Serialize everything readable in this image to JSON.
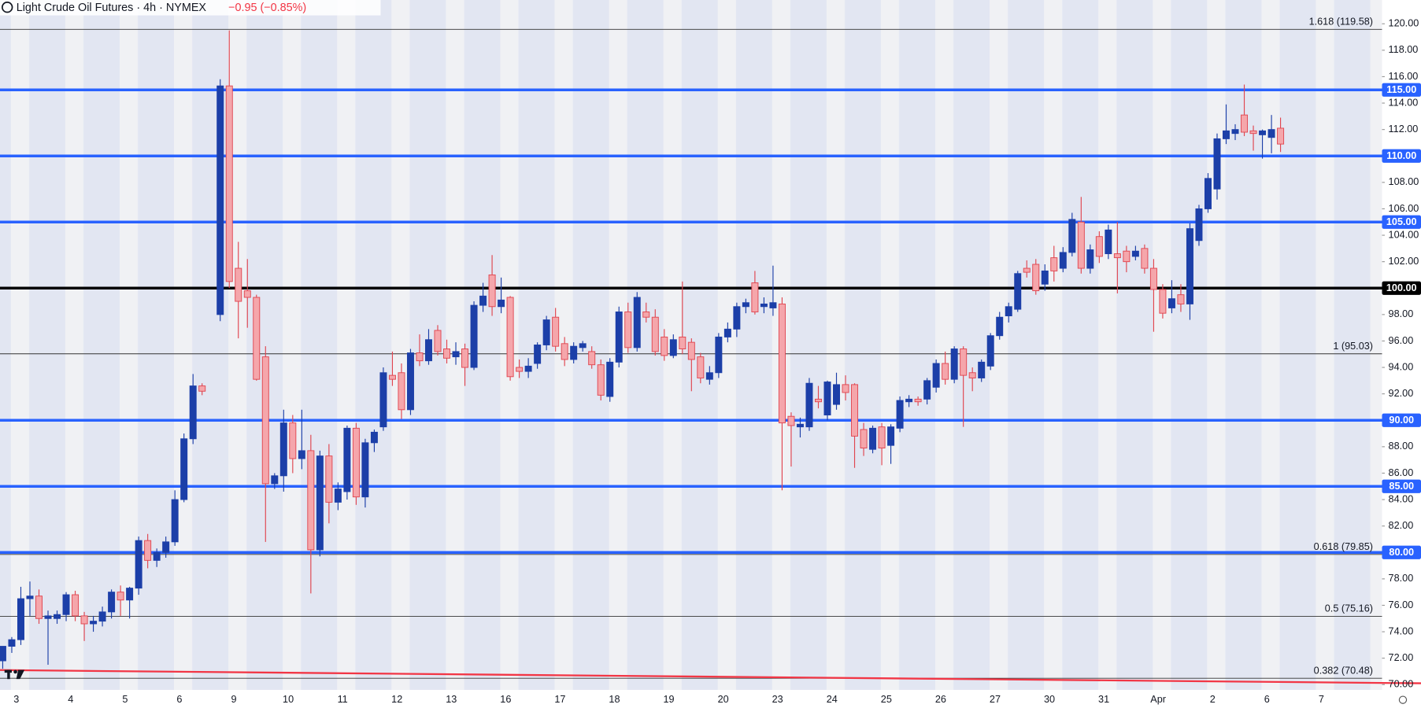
{
  "chart_data": {
    "type": "candlestick",
    "title": "Light Crude Oil Futures · 4h · NYMEX",
    "change": "−0.95 (−0.85%)",
    "categories": [
      "3",
      "4",
      "5",
      "6",
      "9",
      "10",
      "11",
      "12",
      "13",
      "16",
      "17",
      "18",
      "19",
      "20",
      "23",
      "24",
      "25",
      "26",
      "27",
      "30",
      "31",
      "Apr",
      "2",
      "6",
      "7"
    ],
    "ylim": [
      69.6,
      121.8
    ],
    "yticks": [
      {
        "value": 70,
        "label": "70.00"
      },
      {
        "value": 72,
        "label": "72.00"
      },
      {
        "value": 74,
        "label": "74.00"
      },
      {
        "value": 76,
        "label": "76.00"
      },
      {
        "value": 78,
        "label": "78.00"
      },
      {
        "value": 80,
        "label": "80.00"
      },
      {
        "value": 82,
        "label": "82.00"
      },
      {
        "value": 84,
        "label": "84.00"
      },
      {
        "value": 86,
        "label": "86.00"
      },
      {
        "value": 88,
        "label": "88.00"
      },
      {
        "value": 90,
        "label": "90.00"
      },
      {
        "value": 92,
        "label": "92.00"
      },
      {
        "value": 94,
        "label": "94.00"
      },
      {
        "value": 96,
        "label": "96.00"
      },
      {
        "value": 98,
        "label": "98.00"
      },
      {
        "value": 100,
        "label": "100.00"
      },
      {
        "value": 102,
        "label": "102.00"
      },
      {
        "value": 104,
        "label": "104.00"
      },
      {
        "value": 106,
        "label": "106.00"
      },
      {
        "value": 108,
        "label": "108.00"
      },
      {
        "value": 110,
        "label": "110.00"
      },
      {
        "value": 112,
        "label": "112.00"
      },
      {
        "value": 114,
        "label": "114.00"
      },
      {
        "value": 116,
        "label": "116.00"
      },
      {
        "value": 118,
        "label": "118.00"
      },
      {
        "value": 120,
        "label": "120.00"
      }
    ],
    "levels": [
      {
        "value": 115,
        "label": "115.00",
        "color": "#2962ff"
      },
      {
        "value": 110,
        "label": "110.00",
        "color": "#2962ff"
      },
      {
        "value": 105,
        "label": "105.00",
        "color": "#2962ff"
      },
      {
        "value": 100,
        "label": "100.00",
        "color": "#000000"
      },
      {
        "value": 90,
        "label": "90.00",
        "color": "#2962ff"
      },
      {
        "value": 85,
        "label": "85.00",
        "color": "#2962ff"
      },
      {
        "value": 80,
        "label": "80.00",
        "color": "#2962ff"
      }
    ],
    "fib_levels": [
      {
        "value": 119.58,
        "label": "1.618 (119.58)"
      },
      {
        "value": 95.03,
        "label": "1 (95.03)"
      },
      {
        "value": 79.85,
        "label": "0.618 (79.85)"
      },
      {
        "value": 75.16,
        "label": "0.5 (75.16)"
      },
      {
        "value": 70.48,
        "label": "0.382 (70.48)"
      }
    ],
    "moving_average": {
      "color": "#f23645",
      "values": [
        71.1,
        70.1
      ]
    },
    "up_color": "#1c3fa8",
    "down_color": "#f5a6ab",
    "down_edge": "#e0454f",
    "ohlc": [
      [
        [
          71.8,
          72.8,
          71.2,
          72.9
        ],
        [
          72.9,
          73.6,
          72.4,
          73.4
        ],
        [
          73.4,
          77.4,
          73,
          76.5
        ],
        [
          76.5,
          77.8,
          75.2,
          76.7
        ],
        [
          76.7,
          77.2,
          74.6,
          75
        ],
        [
          75,
          75.6,
          71.5,
          75.2
        ]
      ],
      [
        [
          75,
          75.6,
          74.6,
          75.3
        ],
        [
          75.3,
          77,
          74.8,
          76.8
        ],
        [
          76.8,
          77.1,
          74.8,
          75.2
        ],
        [
          75.2,
          75.5,
          73.3,
          74.6
        ],
        [
          74.6,
          75.2,
          74,
          74.8
        ],
        [
          74.8,
          75.9,
          74.4,
          75.5
        ]
      ],
      [
        [
          75.5,
          77.2,
          75,
          77
        ],
        [
          77,
          77.5,
          75.2,
          76.4
        ],
        [
          76.4,
          77.4,
          75,
          77.3
        ],
        [
          77.3,
          81.2,
          76.8,
          80.9
        ],
        [
          80.9,
          81.4,
          78.8,
          79.4
        ],
        [
          79.4,
          80.3,
          78.9,
          80
        ]
      ],
      [
        [
          80,
          81.2,
          79.6,
          80.8
        ],
        [
          80.8,
          84.7,
          80.5,
          84
        ],
        [
          84,
          89,
          83.8,
          88.6
        ],
        [
          88.6,
          93.5,
          88.2,
          92.6
        ],
        [
          92.6,
          92.8,
          91.9,
          92.2
        ],
        null
      ],
      [
        [
          98,
          115.8,
          97.5,
          115.3
        ],
        [
          115.3,
          119.5,
          100,
          100.5
        ],
        [
          101.5,
          103.5,
          96.2,
          99
        ],
        [
          99.8,
          102.2,
          97,
          99.3
        ],
        [
          99.3,
          99.5,
          93,
          93.1
        ],
        [
          94.8,
          95.6,
          80.8,
          85.2
        ]
      ],
      [
        [
          85.2,
          86,
          84.8,
          85.8
        ],
        [
          85.8,
          90.8,
          84.6,
          89.8
        ],
        [
          89.8,
          90.4,
          86,
          87.1
        ],
        [
          87.1,
          90.8,
          86.3,
          87.7
        ],
        [
          87.7,
          88.9,
          76.9,
          80.2
        ],
        [
          80.2,
          87.7,
          79.7,
          87.3
        ]
      ],
      [
        [
          87.3,
          88.2,
          82.2,
          83.8
        ],
        [
          83.8,
          85.3,
          83.2,
          84.8
        ],
        [
          84.6,
          89.6,
          84,
          89.4
        ],
        [
          89.4,
          89.8,
          83.6,
          84.2
        ],
        [
          84.2,
          88.6,
          83.4,
          88.3
        ],
        [
          88.3,
          89.3,
          87.6,
          89.1
        ]
      ],
      [
        [
          89.5,
          94,
          89.2,
          93.6
        ],
        [
          93.4,
          95.2,
          92.6,
          93.1
        ],
        [
          93.6,
          94.3,
          90.1,
          90.8
        ],
        [
          90.8,
          95.4,
          90.4,
          95.1
        ],
        [
          95.1,
          96.5,
          94.1,
          94.5
        ],
        [
          94.5,
          96.9,
          94.2,
          96.1
        ]
      ],
      [
        [
          96.8,
          97.2,
          94.9,
          95.2
        ],
        [
          95.4,
          96.1,
          94.3,
          94.7
        ],
        [
          94.8,
          95.9,
          94.2,
          95.2
        ],
        [
          95.4,
          95.8,
          92.6,
          94
        ],
        [
          94,
          99,
          93.8,
          98.7
        ],
        [
          98.7,
          100.4,
          98.2,
          99.4
        ]
      ],
      [
        [
          101,
          102.5,
          97.9,
          98.6
        ],
        [
          98.6,
          100.8,
          98.1,
          99.1
        ],
        [
          99.3,
          99.4,
          93,
          93.3
        ],
        [
          94,
          94.6,
          93.2,
          93.7
        ],
        [
          93.7,
          94.7,
          93.2,
          94.1
        ],
        [
          94.3,
          95.9,
          93.9,
          95.7
        ]
      ],
      [
        [
          95.7,
          97.9,
          95.3,
          97.6
        ],
        [
          97.8,
          98.5,
          95.2,
          95.6
        ],
        [
          95.8,
          96.3,
          94.1,
          94.6
        ],
        [
          94.6,
          95.9,
          94.3,
          95.6
        ],
        [
          95.5,
          96,
          95.2,
          95.8
        ],
        [
          95.2,
          95.6,
          93.9,
          94.2
        ]
      ],
      [
        [
          94.2,
          94.6,
          91.5,
          91.9
        ],
        [
          91.8,
          94.7,
          91.4,
          94.4
        ],
        [
          94.4,
          98.6,
          94,
          98.2
        ],
        [
          98.2,
          98.9,
          95.1,
          95.5
        ],
        [
          95.5,
          99.7,
          95.2,
          99.3
        ],
        [
          98.2,
          98.9,
          97.4,
          97.8
        ]
      ],
      [
        [
          97.8,
          98.4,
          94.9,
          95.2
        ],
        [
          96.3,
          96.9,
          94.5,
          94.9
        ],
        [
          94.9,
          96.5,
          94.7,
          96.1
        ],
        [
          96.3,
          100.5,
          95,
          95.4
        ],
        [
          95.9,
          96.2,
          92.2,
          94.6
        ],
        [
          94.8,
          95.1,
          92.8,
          93.2
        ]
      ],
      [
        [
          93.1,
          94.1,
          92.7,
          93.6
        ],
        [
          93.6,
          96.6,
          93.2,
          96.3
        ],
        [
          96.3,
          97.4,
          95.9,
          96.9
        ],
        [
          96.9,
          98.9,
          96.3,
          98.6
        ],
        [
          98.6,
          99.2,
          98.1,
          98.9
        ],
        [
          100.4,
          101.3,
          98,
          98.2
        ]
      ],
      [
        [
          98.6,
          99.3,
          98.1,
          98.8
        ],
        [
          98.5,
          101.7,
          97.9,
          98.9
        ],
        [
          98.8,
          99.3,
          84.7,
          89.8
        ],
        [
          90.3,
          90.6,
          86.5,
          89.6
        ],
        [
          89.5,
          90.2,
          88.7,
          89.7
        ],
        [
          89.5,
          93.2,
          89.2,
          92.8
        ]
      ],
      [
        [
          91.6,
          92.6,
          90.9,
          91.4
        ],
        [
          90.4,
          93,
          90,
          92.9
        ],
        [
          91.2,
          93.6,
          90.8,
          92.7
        ],
        [
          92.7,
          93.4,
          91.5,
          92.1
        ],
        [
          92.7,
          92.8,
          86.4,
          88.8
        ],
        [
          89.3,
          89.8,
          87.3,
          87.9
        ]
      ],
      [
        [
          87.8,
          89.6,
          87.5,
          89.4
        ],
        [
          89.5,
          89.8,
          86.6,
          87.9
        ],
        [
          88.1,
          89.7,
          86.7,
          89.5
        ],
        [
          89.4,
          91.8,
          89.1,
          91.5
        ],
        [
          91.4,
          91.9,
          91,
          91.6
        ],
        [
          91.6,
          91.8,
          91.1,
          91.4
        ]
      ],
      [
        [
          91.6,
          93.2,
          91.2,
          93
        ],
        [
          92.5,
          94.6,
          92.1,
          94.3
        ],
        [
          94.3,
          95.2,
          92.7,
          93.1
        ],
        [
          93.1,
          95.6,
          92.8,
          95.4
        ],
        [
          95.4,
          95.6,
          89.5,
          93.4
        ],
        [
          93.6,
          94,
          92.2,
          93.2
        ]
      ],
      [
        [
          93.2,
          94.6,
          92.9,
          94.4
        ],
        [
          94.1,
          96.6,
          93.8,
          96.4
        ],
        [
          96.4,
          98.2,
          96.1,
          97.8
        ],
        [
          97.9,
          98.9,
          97.4,
          98.6
        ],
        [
          98.4,
          101.3,
          98.2,
          101.1
        ],
        [
          101.5,
          102.1,
          100.8,
          101.2
        ]
      ],
      [
        [
          101.8,
          102.2,
          99.5,
          99.8
        ],
        [
          100.3,
          101.8,
          99.8,
          101.3
        ],
        [
          102.3,
          103.2,
          100.5,
          101.3
        ],
        [
          101.5,
          103.1,
          101.2,
          102.7
        ],
        [
          102.7,
          105.7,
          102.4,
          105.2
        ],
        [
          105,
          106.9,
          101.1,
          101.5
        ]
      ],
      [
        [
          101.5,
          103.3,
          101.1,
          102.9
        ],
        [
          103.9,
          104.3,
          101.9,
          102.4
        ],
        [
          102.6,
          104.8,
          102.2,
          104.4
        ],
        [
          102.6,
          105,
          99.6,
          102.3
        ],
        [
          102.8,
          103.2,
          101.2,
          102
        ],
        [
          102.4,
          103.2,
          102.1,
          102.8
        ]
      ],
      [
        [
          103,
          103.3,
          101.1,
          101.5
        ],
        [
          101.5,
          102.2,
          96.7,
          99.9
        ],
        [
          99.9,
          100.3,
          97.7,
          98.1
        ],
        [
          98.5,
          100.6,
          98.1,
          99.2
        ],
        [
          99.5,
          100.3,
          98.2,
          98.8
        ],
        [
          98.8,
          104.9,
          97.6,
          104.5
        ]
      ],
      [
        [
          103.6,
          106.3,
          103.2,
          106
        ],
        [
          106,
          108.7,
          105.7,
          108.3
        ],
        [
          107.5,
          111.7,
          106.7,
          111.3
        ],
        [
          111.3,
          113.9,
          110.9,
          111.9
        ],
        [
          111.7,
          112.4,
          111.2,
          112
        ],
        [
          113.1,
          115.4,
          111.5,
          111.8
        ]
      ],
      [
        [
          111.9,
          112.3,
          110.4,
          111.7
        ],
        [
          111.6,
          112,
          109.8,
          111.9
        ],
        [
          111.4,
          113.1,
          110.2,
          112
        ],
        [
          112.1,
          112.9,
          110.3,
          110.9
        ],
        null,
        null
      ],
      []
    ]
  }
}
